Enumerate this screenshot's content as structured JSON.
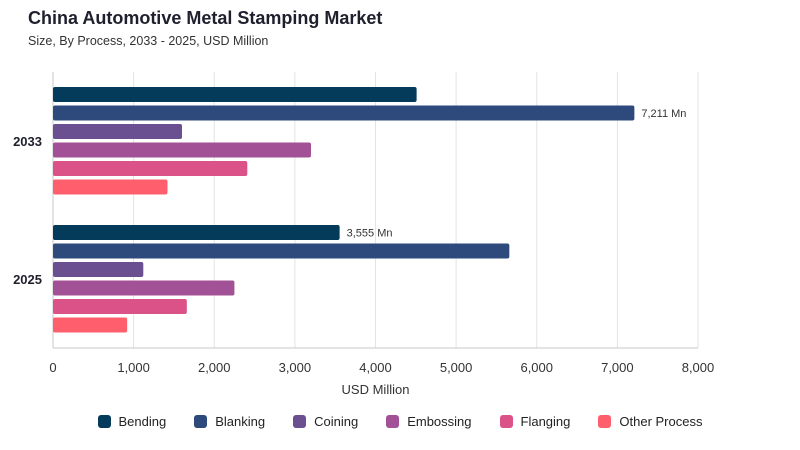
{
  "header": {
    "title": "China Automotive Metal Stamping Market",
    "subtitle": "Size, By Process, 2033 - 2025, USD Million"
  },
  "chart_data": {
    "type": "bar",
    "orientation": "horizontal",
    "categories": [
      "2033",
      "2025"
    ],
    "series": [
      {
        "name": "Bending",
        "color": "#053b5a",
        "values": [
          4510,
          3555
        ]
      },
      {
        "name": "Blanking",
        "color": "#2e4a7d",
        "values": [
          7211,
          5660
        ]
      },
      {
        "name": "Coining",
        "color": "#6a4f91",
        "values": [
          1600,
          1120
        ]
      },
      {
        "name": "Embossing",
        "color": "#a35196",
        "values": [
          3200,
          2250
        ]
      },
      {
        "name": "Flanging",
        "color": "#db5289",
        "values": [
          2410,
          1660
        ]
      },
      {
        "name": "Other Process",
        "color": "#ff5f6d",
        "values": [
          1420,
          920
        ]
      }
    ],
    "data_labels": [
      {
        "category": "2033",
        "series": "Blanking",
        "text": "7,211 Mn"
      },
      {
        "category": "2025",
        "series": "Bending",
        "text": "3,555 Mn"
      }
    ],
    "xlabel": "USD Million",
    "xlim": [
      0,
      8000
    ],
    "xticks": [
      0,
      1000,
      2000,
      3000,
      4000,
      5000,
      6000,
      7000,
      8000
    ],
    "xtick_labels": [
      "0",
      "1,000",
      "2,000",
      "3,000",
      "4,000",
      "5,000",
      "6,000",
      "7,000",
      "8,000"
    ],
    "grid": true,
    "legend_position": "bottom"
  }
}
